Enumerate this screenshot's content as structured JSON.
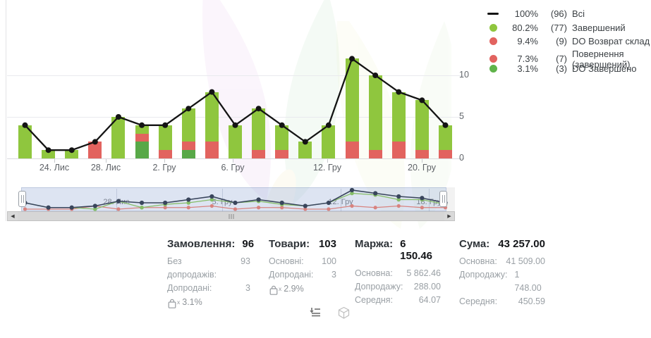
{
  "legend": {
    "items": [
      {
        "swatch": "line",
        "color": "#141414",
        "pct": "100%",
        "count": "(96)",
        "label": "Всі"
      },
      {
        "swatch": "dot",
        "color": "#8fc63e",
        "pct": "80.2%",
        "count": "(77)",
        "label": "Завершений"
      },
      {
        "swatch": "dot",
        "color": "#e2635f",
        "pct": "9.4%",
        "count": "(9)",
        "label": "DO Возврат склад"
      },
      {
        "swatch": "dot",
        "color": "#e2635f",
        "pct": "7.3%",
        "count": "(7)",
        "label": "Повернення (завершений)"
      },
      {
        "swatch": "dot",
        "color": "#5fb34a",
        "pct": "3.1%",
        "count": "(3)",
        "label": "DO Завершено"
      }
    ]
  },
  "chart_data": {
    "type": "bar",
    "subtype": "stacked bars with total line, daily orders by status",
    "n_points": 19,
    "series": [
      {
        "name": "Всі",
        "role": "line",
        "color": "#141414",
        "total": 96,
        "values": [
          4,
          1,
          1,
          2,
          5,
          4,
          4,
          6,
          8,
          4,
          6,
          4,
          2,
          4,
          12,
          10,
          8,
          7,
          4
        ]
      },
      {
        "name": "Завершений",
        "role": "bar",
        "color": "#8fc63e",
        "total": 77,
        "values": [
          4,
          1,
          1,
          0,
          5,
          1,
          3,
          4,
          6,
          4,
          5,
          3,
          2,
          4,
          10,
          9,
          6,
          6,
          3
        ]
      },
      {
        "name": "DO Возврат склад + Повернення (завершений)",
        "role": "bar",
        "color": "#e2635f",
        "total": 16,
        "note": "two red statuses (9 and 7) rendered in identical color, per-bar split not distinguishable",
        "values": [
          0,
          0,
          0,
          2,
          0,
          1,
          1,
          1,
          2,
          0,
          1,
          1,
          0,
          0,
          2,
          1,
          2,
          1,
          1
        ]
      },
      {
        "name": "DO Завершено",
        "role": "bar",
        "color": "#58a848",
        "total": 3,
        "values": [
          0,
          0,
          0,
          0,
          0,
          2,
          0,
          1,
          0,
          0,
          0,
          0,
          0,
          0,
          0,
          0,
          0,
          0,
          0
        ]
      }
    ],
    "stack_order_bottom_to_top": [
      "DO Завершено",
      "red combined",
      "Завершений"
    ],
    "ylim": [
      0,
      12
    ],
    "y_ticks": [
      "0",
      "5",
      "10"
    ],
    "grid": "horizontal",
    "legend_position": "top-right",
    "x_labels": [
      {
        "text": "24. Лис",
        "x": 77
      },
      {
        "text": "28. Лис",
        "x": 150
      },
      {
        "text": "2. Гру",
        "x": 233
      },
      {
        "text": "6. Гру",
        "x": 330
      },
      {
        "text": "12. Гру",
        "x": 464
      },
      {
        "text": "20. Гру",
        "x": 598
      }
    ]
  },
  "navigator": {
    "x_labels": [
      {
        "text": "28. Лис",
        "x": 165
      },
      {
        "text": "5. Гру",
        "x": 315
      },
      {
        "text": "12. Гру",
        "x": 483
      },
      {
        "text": "18. Гру",
        "x": 608
      }
    ],
    "line_colors": {
      "total": "#39455c",
      "completed": "#86bd68",
      "returns": "#d8837f"
    }
  },
  "icons": {
    "scroll_left": "◀",
    "scroll_right": "▶",
    "upsell_bag": "bag-with-x-icon",
    "upsell_sub": "x",
    "footer_left": "orders-list-icon",
    "footer_right": "package-cube-icon"
  },
  "stats": {
    "columns": [
      {
        "title": "Замовлення:",
        "value": "96",
        "rows": [
          {
            "label": "Без допродажів:",
            "value": "93"
          },
          {
            "label": "Допродані:",
            "value": "3"
          }
        ],
        "badge": "3.1%"
      },
      {
        "title": "Товари:",
        "value": "103",
        "rows": [
          {
            "label": "Основні:",
            "value": "100"
          },
          {
            "label": "Допродані:",
            "value": "3"
          }
        ],
        "badge": "2.9%"
      },
      {
        "title": "Маржа:",
        "value": "6 150.46",
        "rows": [
          {
            "label": "Основна:",
            "value": "5 862.46"
          },
          {
            "label": "Допродажу:",
            "value": "288.00"
          },
          {
            "label": "Середня:",
            "value": "64.07"
          }
        ],
        "badge": null
      },
      {
        "title": "Сума:",
        "value": "43 257.00",
        "rows": [
          {
            "label": "Основна:",
            "value": "41 509.00"
          },
          {
            "label": "Допродажу:",
            "value": "1 748.00"
          },
          {
            "label": "Середня:",
            "value": "450.59"
          }
        ],
        "badge": null
      }
    ]
  },
  "colors": {
    "bar_green_light": "#8fc63e",
    "bar_green_dark": "#58a848",
    "bar_red": "#e2635f",
    "line": "#141414",
    "grid": "#e9eaee",
    "nav_band": "rgba(148,170,216,.32)"
  }
}
